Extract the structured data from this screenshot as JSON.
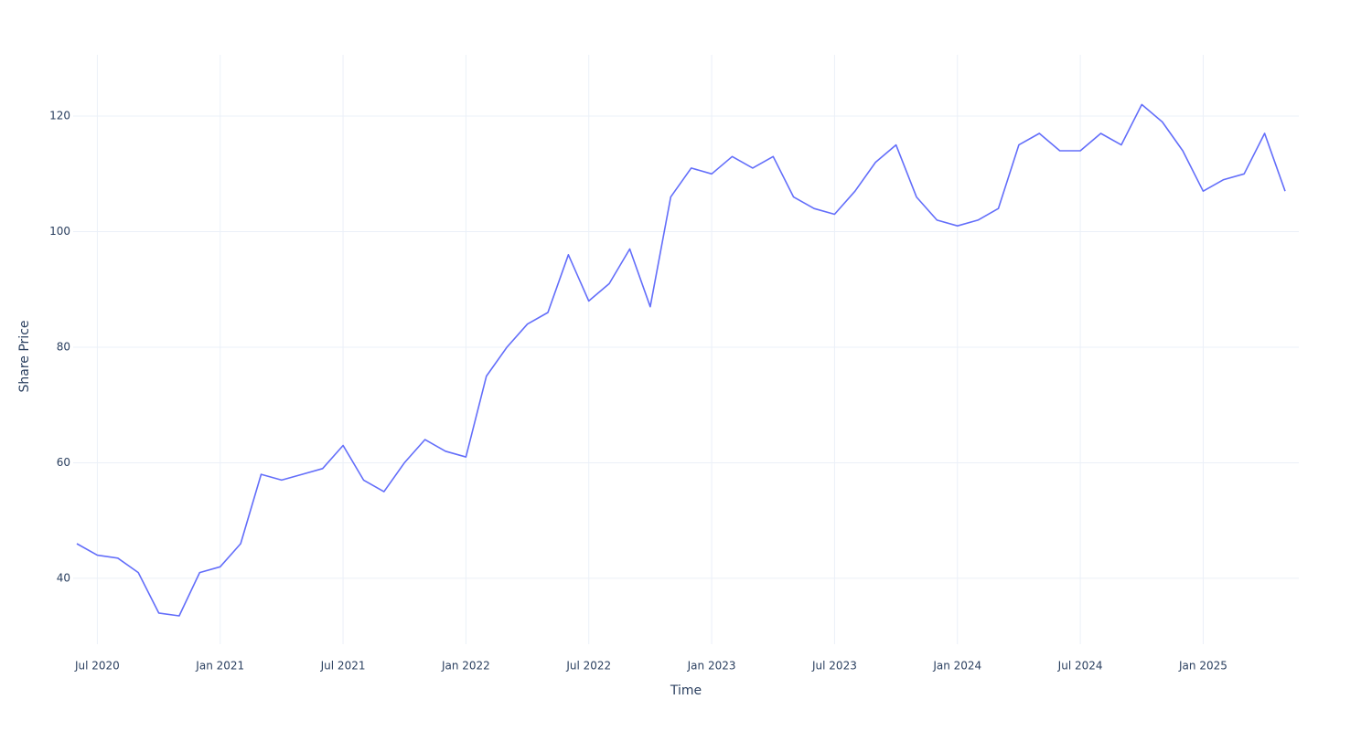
{
  "chart_data": {
    "type": "line",
    "x_label": "Time",
    "y_label": "Share Price",
    "x": [
      "2020-06",
      "2020-07",
      "2020-08",
      "2020-09",
      "2020-10",
      "2020-11",
      "2020-12",
      "2021-01",
      "2021-02",
      "2021-03",
      "2021-04",
      "2021-05",
      "2021-06",
      "2021-07",
      "2021-08",
      "2021-09",
      "2021-10",
      "2021-11",
      "2021-12",
      "2022-01",
      "2022-02",
      "2022-03",
      "2022-04",
      "2022-05",
      "2022-06",
      "2022-07",
      "2022-08",
      "2022-09",
      "2022-10",
      "2022-11",
      "2022-12",
      "2023-01",
      "2023-02",
      "2023-03",
      "2023-04",
      "2023-05",
      "2023-06",
      "2023-07",
      "2023-08",
      "2023-09",
      "2023-10",
      "2023-11",
      "2023-12",
      "2024-01",
      "2024-02",
      "2024-03",
      "2024-04",
      "2024-05",
      "2024-06",
      "2024-07",
      "2024-08",
      "2024-09",
      "2024-10",
      "2024-11",
      "2024-12",
      "2025-01",
      "2025-02",
      "2025-03",
      "2025-04",
      "2025-05"
    ],
    "series": [
      {
        "color": "#636efa",
        "values": [
          46,
          44,
          43.5,
          41,
          34,
          33.5,
          41,
          42,
          46,
          58,
          57,
          58,
          59,
          63,
          57,
          55,
          60,
          64,
          62,
          61,
          75,
          80,
          84,
          86,
          96,
          88,
          91,
          97,
          87,
          106,
          111,
          110,
          113,
          111,
          113,
          106,
          104,
          103,
          107,
          112,
          115,
          106,
          102,
          101,
          102,
          104,
          115,
          117,
          114,
          114,
          117,
          115,
          122,
          119,
          114,
          107,
          109,
          110,
          117,
          107
        ]
      }
    ],
    "xlim": [
      "2020-06",
      "2025-05"
    ],
    "xticks": [
      {
        "value": "2020-07",
        "label": "Jul 2020"
      },
      {
        "value": "2021-01",
        "label": "Jan 2021"
      },
      {
        "value": "2021-07",
        "label": "Jul 2021"
      },
      {
        "value": "2022-01",
        "label": "Jan 2022"
      },
      {
        "value": "2022-07",
        "label": "Jul 2022"
      },
      {
        "value": "2023-01",
        "label": "Jan 2023"
      },
      {
        "value": "2023-07",
        "label": "Jul 2023"
      },
      {
        "value": "2024-01",
        "label": "Jan 2024"
      },
      {
        "value": "2024-07",
        "label": "Jul 2024"
      },
      {
        "value": "2025-01",
        "label": "Jan 2025"
      }
    ],
    "ylim": [
      28.6,
      130.6
    ],
    "yticks": [
      40,
      60,
      80,
      100,
      120
    ],
    "grid": true
  }
}
